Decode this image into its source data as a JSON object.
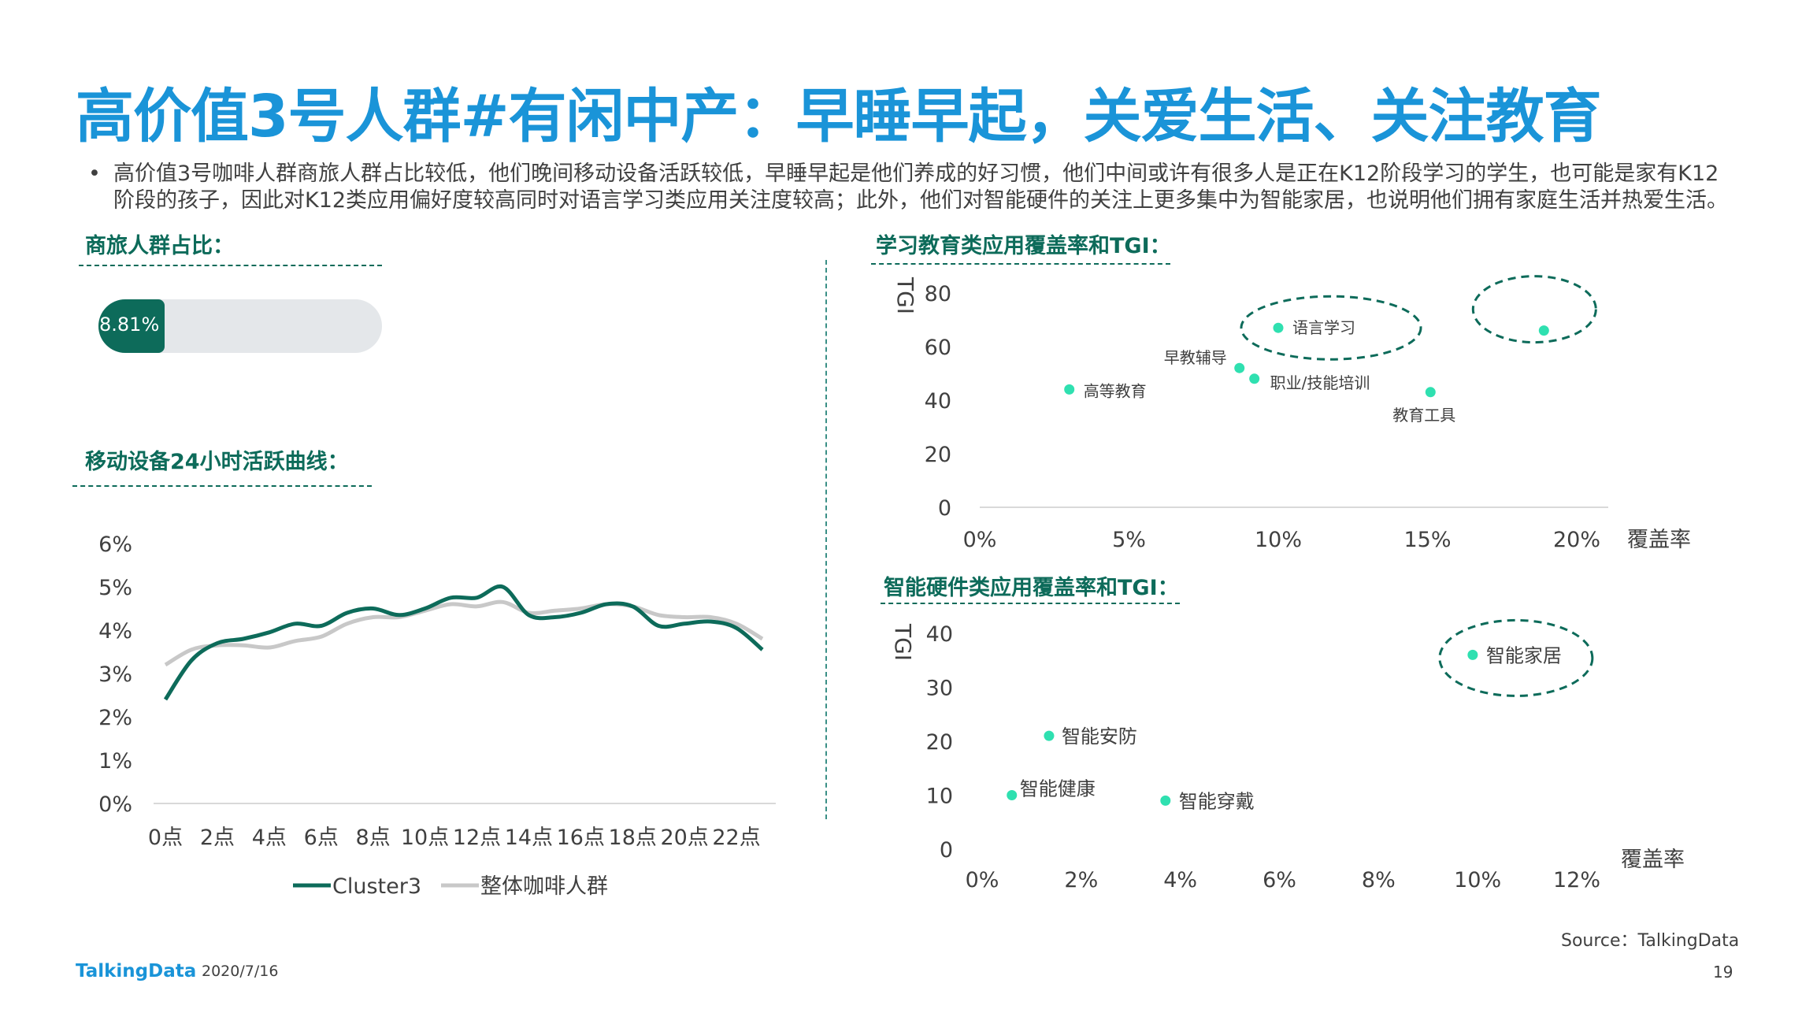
{
  "title": "高价值3号人群#有闲中产：早睡早起，关爱生活、关注教育",
  "bullet": {
    "marker": "•",
    "text": "高价值3号咖啡人群商旅人群占比较低，他们晚间移动设备活跃较低，早睡早起是他们养成的好习惯，他们中间或许有很多人是正在K12阶段学习的学生，也可能是家有K12阶段的孩子，因此对K12类应用偏好度较高同时对语言学习类应用关注度较高；此外，他们对智能硬件的关注上更多集中为智能家居，也说明他们拥有家庭生活并热爱生活。"
  },
  "sections": {
    "business": "商旅人群占比：",
    "activity": "移动设备24小时活跃曲线：",
    "education": "学习教育类应用覆盖率和TGI：",
    "hardware": "智能硬件类应用覆盖率和TGI："
  },
  "colors": {
    "title": "#1a94d8",
    "accent": "#0d6b5a",
    "dot": "#2fe0b0",
    "grey": "#c8c8c8"
  },
  "progress": {
    "label": "8.81%",
    "value": 0.0881
  },
  "source": "Source：TalkingData",
  "footer": {
    "logo": "TalkingData",
    "date": "2020/7/16",
    "page": "19"
  },
  "chart_data": [
    {
      "type": "line",
      "categories": [
        "0点",
        "2点",
        "4点",
        "6点",
        "8点",
        "10点",
        "12点",
        "14点",
        "16点",
        "18点",
        "20点",
        "22点"
      ],
      "yticks": [
        "0%",
        "1%",
        "2%",
        "3%",
        "4%",
        "5%",
        "6%"
      ],
      "ylim": [
        0,
        6
      ],
      "x_range": [
        0,
        23
      ],
      "series": [
        {
          "name": "Cluster3",
          "color": "#0d6b5a",
          "x": [
            0,
            1,
            2,
            3,
            4,
            5,
            6,
            7,
            8,
            9,
            10,
            11,
            12,
            13,
            14,
            15,
            16,
            17,
            18,
            19,
            20,
            21,
            22,
            23
          ],
          "values": [
            2.4,
            3.3,
            3.7,
            3.8,
            3.95,
            4.15,
            4.1,
            4.4,
            4.5,
            4.35,
            4.5,
            4.75,
            4.75,
            5.0,
            4.35,
            4.3,
            4.4,
            4.6,
            4.55,
            4.1,
            4.15,
            4.2,
            4.05,
            3.55
          ]
        },
        {
          "name": "整体咖啡人群",
          "color": "#c8c8c8",
          "x": [
            0,
            1,
            2,
            3,
            4,
            5,
            6,
            7,
            8,
            9,
            10,
            11,
            12,
            13,
            14,
            15,
            16,
            17,
            18,
            19,
            20,
            21,
            22,
            23
          ],
          "values": [
            3.2,
            3.55,
            3.65,
            3.65,
            3.6,
            3.75,
            3.85,
            4.15,
            4.3,
            4.3,
            4.45,
            4.6,
            4.55,
            4.65,
            4.4,
            4.45,
            4.5,
            4.6,
            4.55,
            4.35,
            4.3,
            4.3,
            4.15,
            3.8
          ]
        }
      ]
    },
    {
      "type": "scatter",
      "ylabel": "TGI",
      "xlabel": "覆盖率",
      "xticks": [
        "0%",
        "5%",
        "10%",
        "15%",
        "20%"
      ],
      "yticks": [
        "0",
        "20",
        "40",
        "60",
        "80"
      ],
      "xlim": [
        0,
        20
      ],
      "ylim": [
        0,
        80
      ],
      "points": [
        {
          "label": "语言学习",
          "x": 10.0,
          "y": 67,
          "highlight": true
        },
        {
          "label": "",
          "x": 18.9,
          "y": 66,
          "highlight": true
        },
        {
          "label": "早教辅导",
          "x": 8.7,
          "y": 52,
          "highlight": false
        },
        {
          "label": "职业/技能培训",
          "x": 9.2,
          "y": 48,
          "highlight": false
        },
        {
          "label": "高等教育",
          "x": 3.0,
          "y": 44,
          "highlight": false
        },
        {
          "label": "教育工具",
          "x": 15.1,
          "y": 43,
          "highlight": false
        }
      ]
    },
    {
      "type": "scatter",
      "ylabel": "TGI",
      "xlabel": "覆盖率",
      "xticks": [
        "0%",
        "2%",
        "4%",
        "6%",
        "8%",
        "10%",
        "12%"
      ],
      "yticks": [
        "0",
        "10",
        "20",
        "30",
        "40"
      ],
      "xlim": [
        0,
        12
      ],
      "ylim": [
        0,
        40
      ],
      "points": [
        {
          "label": "智能家居",
          "x": 9.9,
          "y": 36,
          "highlight": true
        },
        {
          "label": "智能安防",
          "x": 1.35,
          "y": 21,
          "highlight": false
        },
        {
          "label": "智能健康",
          "x": 0.6,
          "y": 10,
          "highlight": false
        },
        {
          "label": "智能穿戴",
          "x": 3.7,
          "y": 9,
          "highlight": false
        }
      ]
    }
  ]
}
